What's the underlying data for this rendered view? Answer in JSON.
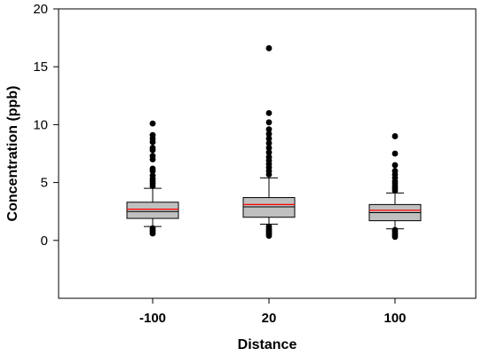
{
  "chart_data": {
    "type": "box",
    "xlabel": "Distance",
    "ylabel": "Concentration (ppb)",
    "ylim": [
      -5,
      20
    ],
    "yticks": [
      0,
      5,
      10,
      15,
      20
    ],
    "categories": [
      "-100",
      "20",
      "100"
    ],
    "grid": false,
    "legend": "none",
    "box_fill": "#c0c0c0",
    "median_color": "#000000",
    "mean_color": "#ff0000",
    "outlier_color": "#000000",
    "boxes": [
      {
        "category": "-100",
        "whisker_low": 1.2,
        "q1": 1.9,
        "median": 2.5,
        "mean": 2.7,
        "q3": 3.3,
        "whisker_high": 4.5,
        "outliers": [
          0.6,
          0.75,
          0.9,
          1.05,
          4.7,
          4.9,
          5.1,
          5.3,
          5.6,
          6.0,
          6.2,
          7.0,
          7.3,
          7.8,
          8.0,
          8.5,
          8.8,
          9.1,
          10.1
        ]
      },
      {
        "category": "20",
        "whisker_low": 1.4,
        "q1": 2.0,
        "median": 2.9,
        "mean": 3.1,
        "q3": 3.7,
        "whisker_high": 5.4,
        "outliers": [
          0.4,
          0.55,
          0.7,
          0.85,
          1.0,
          1.2,
          5.7,
          6.0,
          6.3,
          6.6,
          6.9,
          7.2,
          7.6,
          8.0,
          8.4,
          8.8,
          9.2,
          9.6,
          10.2,
          11.0,
          16.6
        ]
      },
      {
        "category": "100",
        "whisker_low": 1.0,
        "q1": 1.7,
        "median": 2.4,
        "mean": 2.6,
        "q3": 3.1,
        "whisker_high": 4.1,
        "outliers": [
          0.3,
          0.45,
          0.6,
          0.75,
          0.9,
          4.3,
          4.5,
          4.7,
          4.9,
          5.1,
          5.4,
          5.7,
          6.0,
          6.5,
          7.5,
          9.0
        ]
      }
    ]
  }
}
